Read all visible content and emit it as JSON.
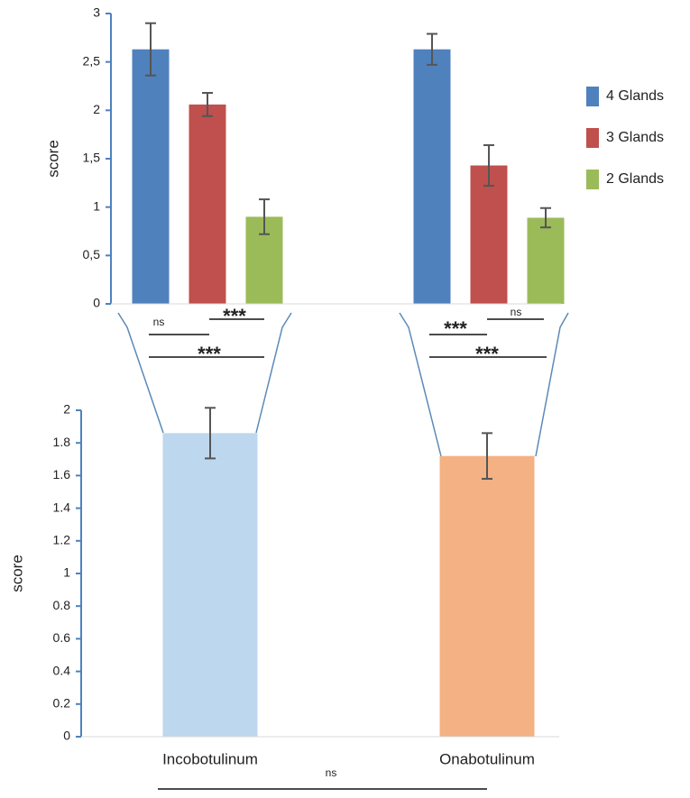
{
  "chart_data": [
    {
      "type": "bar",
      "ylabel": "score",
      "categories": [
        null,
        null
      ],
      "ylim": [
        0,
        3
      ],
      "yticks": [
        0,
        {
          "value": 0.5,
          "label": "0,5"
        },
        1,
        {
          "value": 1.5,
          "label": "1,5"
        },
        2,
        {
          "value": 2.5,
          "label": "2,5"
        },
        3
      ],
      "series": [
        {
          "name": "4 Glands",
          "color": "#4f81bd",
          "values": [
            2.63,
            2.63
          ],
          "errors": [
            0.27,
            0.16
          ]
        },
        {
          "name": "3 Glands",
          "color": "#c0504d",
          "values": [
            2.06,
            1.43
          ],
          "errors": [
            0.12,
            0.21
          ]
        },
        {
          "name": "2 Glands",
          "color": "#9bbb59",
          "values": [
            0.9,
            0.89
          ],
          "errors": [
            0.18,
            0.1
          ]
        }
      ],
      "legend": "right",
      "annotations": [
        "ns",
        "***",
        "***",
        "***",
        "ns",
        "***"
      ]
    },
    {
      "type": "bar",
      "ylabel": "score",
      "categories": [
        "Incobotulinum",
        "Onabotulinum"
      ],
      "values": [
        1.86,
        1.72
      ],
      "errors": [
        0.155,
        0.14
      ],
      "colors": [
        "#bdd7ee",
        "#f4b183"
      ],
      "ylim": [
        0,
        2
      ],
      "yticks": [
        0,
        0.2,
        0.4,
        0.6,
        0.8,
        1,
        1.2,
        1.4,
        1.6,
        1.8,
        2
      ],
      "annotations": [
        "ns"
      ]
    }
  ]
}
